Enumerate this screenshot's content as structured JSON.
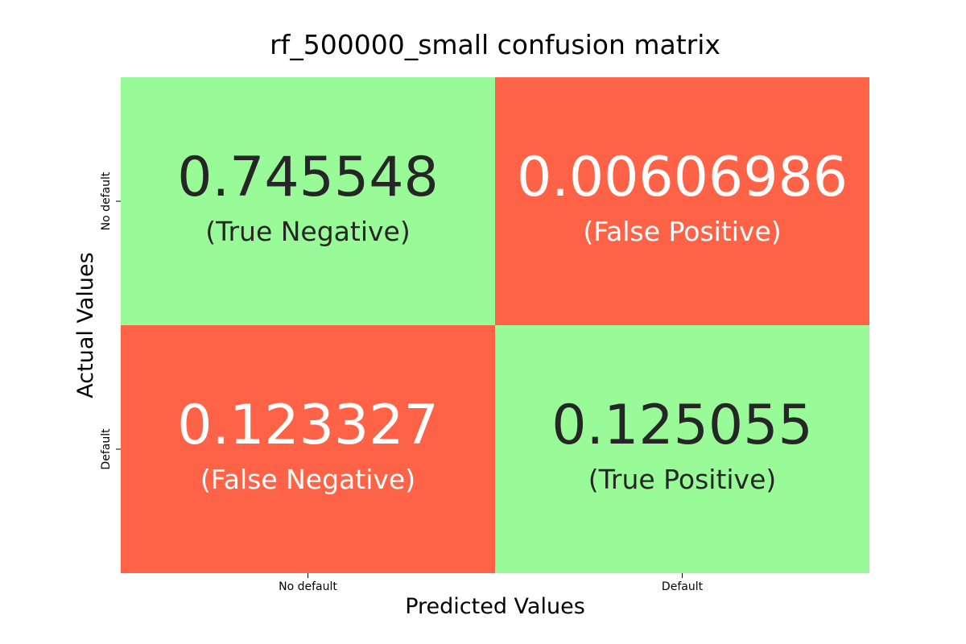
{
  "chart_data": {
    "type": "heatmap",
    "title": "rf_500000_small confusion matrix",
    "xlabel": "Predicted Values",
    "ylabel": "Actual Values",
    "x_categories": [
      "No default",
      "Default"
    ],
    "y_categories": [
      "No default",
      "Default"
    ],
    "values": [
      [
        0.745548,
        0.00606986
      ],
      [
        0.123327,
        0.125055
      ]
    ],
    "value_labels": [
      [
        "0.745548",
        "0.00606986"
      ],
      [
        "0.123327",
        "0.125055"
      ]
    ],
    "cell_labels": [
      [
        "(True Negative)",
        "(False Positive)"
      ],
      [
        "(False Negative)",
        "(True Positive)"
      ]
    ],
    "cell_colors": [
      [
        "#98fb98",
        "#ff6347"
      ],
      [
        "#ff6347",
        "#98fb98"
      ]
    ],
    "text_colors": [
      [
        "#262626",
        "#ffffff"
      ],
      [
        "#ffffff",
        "#262626"
      ]
    ],
    "grid": false,
    "legend": "none"
  }
}
